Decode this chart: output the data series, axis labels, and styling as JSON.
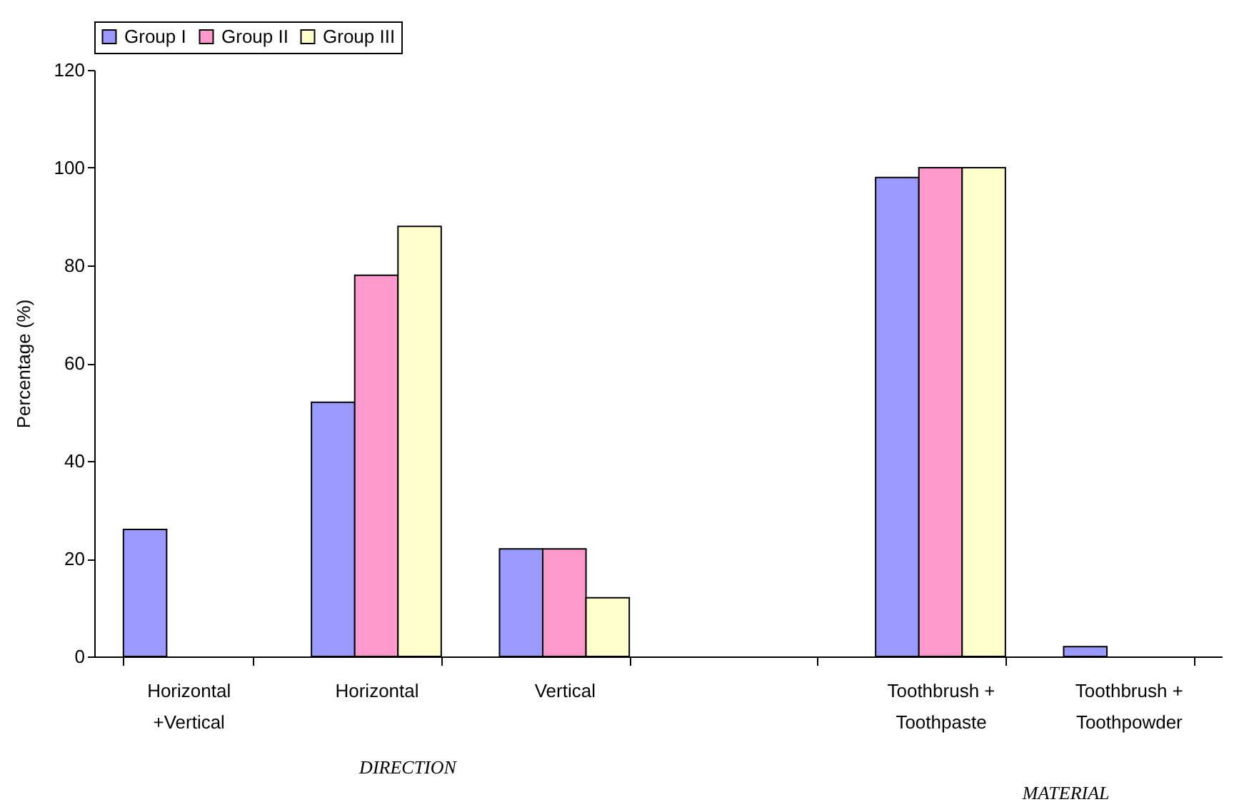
{
  "chart_data": {
    "type": "bar",
    "ylabel": "Percentage (%)",
    "categories": [
      "Horizontal +Vertical",
      "Horizontal",
      "Vertical",
      null,
      "Toothbrush + Toothpaste",
      "Toothbrush + Toothpowder"
    ],
    "series": [
      {
        "name": "Group I",
        "color": "#9999ff",
        "values": [
          26,
          52,
          22,
          null,
          98,
          2
        ]
      },
      {
        "name": "Group II",
        "color": "#ff99cc",
        "values": [
          0,
          78,
          22,
          null,
          100,
          0
        ]
      },
      {
        "name": "Group III",
        "color": "#ffffcc",
        "values": [
          0,
          88,
          12,
          null,
          100,
          0
        ]
      }
    ],
    "ylim": [
      0,
      120
    ],
    "yticks": [
      0,
      20,
      40,
      60,
      80,
      100,
      120
    ],
    "legend": "top",
    "annotations": [
      "DIRECTION",
      "MATERIAL"
    ]
  }
}
